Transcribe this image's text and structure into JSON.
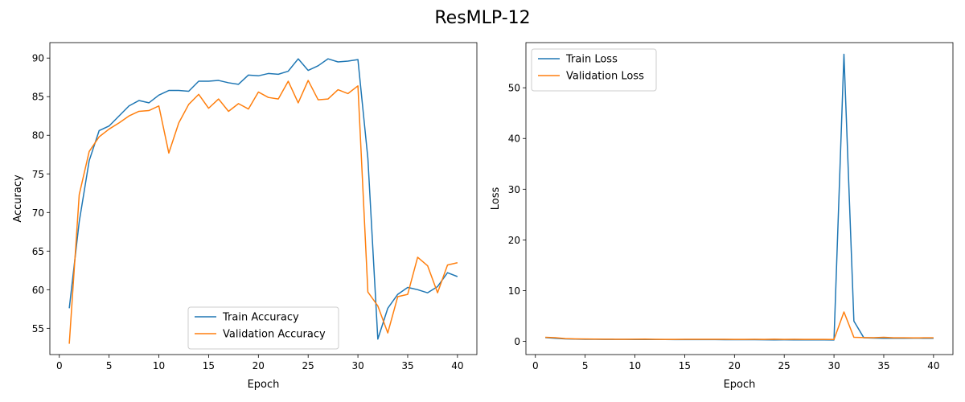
{
  "figure": {
    "title": "ResMLP-12"
  },
  "chart_data": [
    {
      "type": "line",
      "xlabel": "Epoch",
      "ylabel": "Accuracy",
      "xlim": [
        -0.95,
        41.95
      ],
      "ylim": [
        51.6,
        92.0
      ],
      "xticks": [
        0,
        5,
        10,
        15,
        20,
        25,
        30,
        35,
        40
      ],
      "yticks": [
        55,
        60,
        65,
        70,
        75,
        80,
        85,
        90
      ],
      "legend_position": "lower center",
      "x": [
        1,
        2,
        3,
        4,
        5,
        6,
        7,
        8,
        9,
        10,
        11,
        12,
        13,
        14,
        15,
        16,
        17,
        18,
        19,
        20,
        21,
        22,
        23,
        24,
        25,
        26,
        27,
        28,
        29,
        30,
        31,
        32,
        33,
        34,
        35,
        36,
        37,
        38,
        39,
        40
      ],
      "series": [
        {
          "name": "Train Accuracy",
          "color": "#1f77b4",
          "values": [
            57.6,
            68.8,
            76.7,
            80.6,
            81.2,
            82.5,
            83.8,
            84.5,
            84.2,
            85.2,
            85.8,
            85.8,
            85.7,
            87.0,
            87.0,
            87.1,
            86.8,
            86.6,
            87.8,
            87.7,
            88.0,
            87.9,
            88.3,
            89.9,
            88.4,
            89.0,
            89.9,
            89.5,
            89.6,
            89.8,
            77.0,
            53.6,
            57.6,
            59.4,
            60.3,
            60.0,
            59.6,
            60.4,
            62.2,
            61.7
          ]
        },
        {
          "name": "Validation Accuracy",
          "color": "#ff7f0e",
          "values": [
            53.0,
            72.3,
            77.9,
            79.8,
            80.8,
            81.6,
            82.5,
            83.1,
            83.2,
            83.8,
            77.7,
            81.6,
            84.0,
            85.3,
            83.5,
            84.7,
            83.1,
            84.1,
            83.4,
            85.6,
            84.9,
            84.7,
            87.0,
            84.2,
            87.1,
            84.6,
            84.7,
            85.9,
            85.4,
            86.4,
            59.7,
            57.9,
            54.4,
            59.1,
            59.4,
            64.2,
            63.1,
            59.6,
            63.2,
            63.5
          ]
        }
      ]
    },
    {
      "type": "line",
      "xlabel": "Epoch",
      "ylabel": "Loss",
      "xlim": [
        -0.95,
        41.95
      ],
      "ylim": [
        -2.6,
        58.9
      ],
      "xticks": [
        0,
        5,
        10,
        15,
        20,
        25,
        30,
        35,
        40
      ],
      "yticks": [
        0,
        10,
        20,
        30,
        40,
        50
      ],
      "legend_position": "upper left",
      "x": [
        1,
        2,
        3,
        4,
        5,
        6,
        7,
        8,
        9,
        10,
        11,
        12,
        13,
        14,
        15,
        16,
        17,
        18,
        19,
        20,
        21,
        22,
        23,
        24,
        25,
        26,
        27,
        28,
        29,
        30,
        31,
        32,
        33,
        34,
        35,
        36,
        37,
        38,
        39,
        40
      ],
      "series": [
        {
          "name": "Train Loss",
          "color": "#1f77b4",
          "values": [
            0.75,
            0.6,
            0.5,
            0.45,
            0.42,
            0.41,
            0.4,
            0.4,
            0.39,
            0.38,
            0.38,
            0.38,
            0.37,
            0.36,
            0.36,
            0.36,
            0.35,
            0.35,
            0.34,
            0.34,
            0.33,
            0.33,
            0.32,
            0.3,
            0.31,
            0.3,
            0.3,
            0.29,
            0.29,
            0.28,
            56.6,
            4.0,
            0.7,
            0.65,
            0.6,
            0.6,
            0.62,
            0.63,
            0.62,
            0.62
          ]
        },
        {
          "name": "Validation Loss",
          "color": "#ff7f0e",
          "values": [
            0.8,
            0.72,
            0.55,
            0.5,
            0.47,
            0.45,
            0.44,
            0.42,
            0.41,
            0.43,
            0.45,
            0.42,
            0.4,
            0.4,
            0.42,
            0.41,
            0.42,
            0.41,
            0.41,
            0.4,
            0.4,
            0.41,
            0.39,
            0.44,
            0.39,
            0.41,
            0.4,
            0.39,
            0.39,
            0.38,
            5.8,
            0.8,
            0.75,
            0.72,
            0.8,
            0.7,
            0.7,
            0.68,
            0.7,
            0.7
          ]
        }
      ]
    }
  ]
}
